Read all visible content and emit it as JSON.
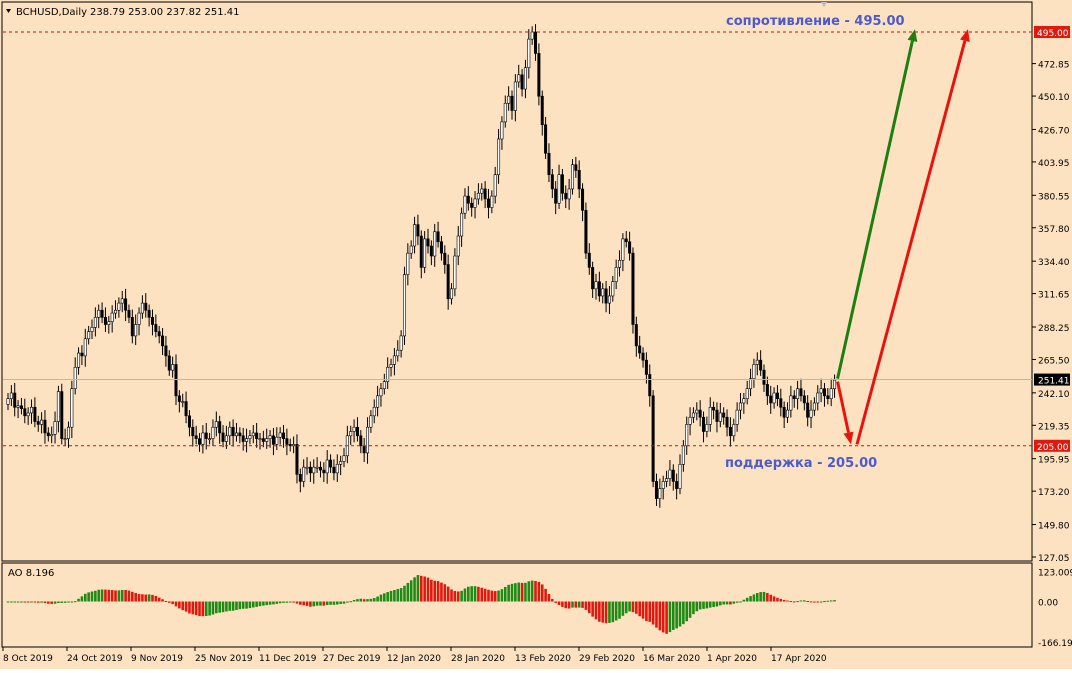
{
  "header": {
    "symbol": "BCHUSD,Daily",
    "ohlc": "238.79 253.00 237.82 251.41",
    "menu_icon": "triangle-down-icon"
  },
  "annotations": {
    "resistance": "сопротивление - 495.00",
    "support": "поддержка - 205.00"
  },
  "colors": {
    "background": "#FDE2C2",
    "grid_line": "#000000",
    "bull_body": "#FFFFFF",
    "bear_body": "#000000",
    "level_line": "#C81414",
    "level_label_bg": "#E0180E",
    "price_label_bg": "#000000",
    "annotation_text": "#4B5BCF",
    "arrow_green": "#1E7E10",
    "arrow_red": "#E8140C",
    "ao_up": "#1E8C14",
    "ao_down": "#E0180E"
  },
  "chart_data": [
    {
      "type": "candlestick",
      "title": "BCHUSD,Daily",
      "y_ticks": [
        "127.05",
        "149.80",
        "173.20",
        "195.95",
        "219.35",
        "242.10",
        "265.50",
        "288.25",
        "311.65",
        "334.40",
        "357.80",
        "380.55",
        "403.95",
        "426.70",
        "450.10",
        "472.85"
      ],
      "ylim": [
        120,
        500
      ],
      "x_ticks": [
        "8 Oct 2019",
        "24 Oct 2019",
        "9 Nov 2019",
        "25 Nov 2019",
        "11 Dec 2019",
        "27 Dec 2019",
        "12 Jan 2020",
        "28 Jan 2020",
        "13 Feb 2020",
        "29 Feb 2020",
        "16 Mar 2020",
        "1 Apr 2020",
        "17 Apr 2020"
      ],
      "levels": [
        {
          "label": "495.00",
          "value": 495.0
        },
        {
          "label": "205.00",
          "value": 205.0
        }
      ],
      "current_price": {
        "label": "251.41",
        "value": 251.41
      },
      "closes": [
        238,
        242,
        232,
        233,
        231,
        226,
        228,
        232,
        222,
        220,
        223,
        214,
        212,
        213,
        222,
        243,
        210,
        210,
        218,
        245,
        260,
        270,
        268,
        280,
        285,
        288,
        295,
        300,
        295,
        290,
        292,
        298,
        300,
        305,
        308,
        300,
        295,
        282,
        290,
        298,
        305,
        300,
        295,
        290,
        285,
        282,
        275,
        268,
        258,
        262,
        240,
        236,
        236,
        226,
        218,
        212,
        210,
        206,
        214,
        210,
        210,
        218,
        222,
        214,
        208,
        212,
        218,
        212,
        214,
        212,
        208,
        210,
        212,
        214,
        210,
        210,
        208,
        210,
        212,
        206,
        211,
        214,
        210,
        206,
        205,
        206,
        185,
        180,
        190,
        190,
        186,
        190,
        190,
        188,
        186,
        195,
        190,
        186,
        192,
        194,
        198,
        212,
        215,
        218,
        212,
        205,
        200,
        218,
        226,
        232,
        240,
        245,
        250,
        260,
        262,
        268,
        272,
        282,
        325,
        340,
        345,
        360,
        352,
        330,
        350,
        345,
        338,
        355,
        348,
        340,
        332,
        308,
        315,
        338,
        352,
        368,
        380,
        375,
        372,
        378,
        382,
        385,
        378,
        372,
        380,
        395,
        420,
        432,
        445,
        450,
        440,
        460,
        465,
        455,
        470,
        490,
        495,
        480,
        450,
        430,
        410,
        395,
        385,
        375,
        395,
        382,
        378,
        385,
        402,
        398,
        385,
        370,
        340,
        330,
        315,
        320,
        310,
        315,
        305,
        310,
        320,
        330,
        335,
        350,
        348,
        340,
        290,
        275,
        270,
        265,
        255,
        240,
        180,
        168,
        175,
        180,
        182,
        188,
        180,
        175,
        192,
        205,
        220,
        225,
        228,
        230,
        225,
        215,
        220,
        232,
        230,
        222,
        228,
        225,
        218,
        212,
        220,
        230,
        235,
        238,
        245,
        252,
        262,
        265,
        258,
        248,
        240,
        235,
        242,
        238,
        232,
        225,
        230,
        240,
        238,
        245,
        240,
        235,
        225,
        230,
        235,
        242,
        245,
        240,
        238,
        245,
        251
      ],
      "forecast_arrows": [
        {
          "color": "green",
          "from": 251.41,
          "to": 495.0
        },
        {
          "color": "red",
          "from": 251.41,
          "to": 205.0
        },
        {
          "color": "red",
          "from": 205.0,
          "to": 495.0
        }
      ]
    },
    {
      "type": "bar",
      "title": "AO 8.196",
      "indicator": "Awesome Oscillator",
      "y_ticks": [
        "123.009",
        "0.00",
        "-166.191"
      ],
      "ylim": [
        -170,
        125
      ]
    }
  ]
}
